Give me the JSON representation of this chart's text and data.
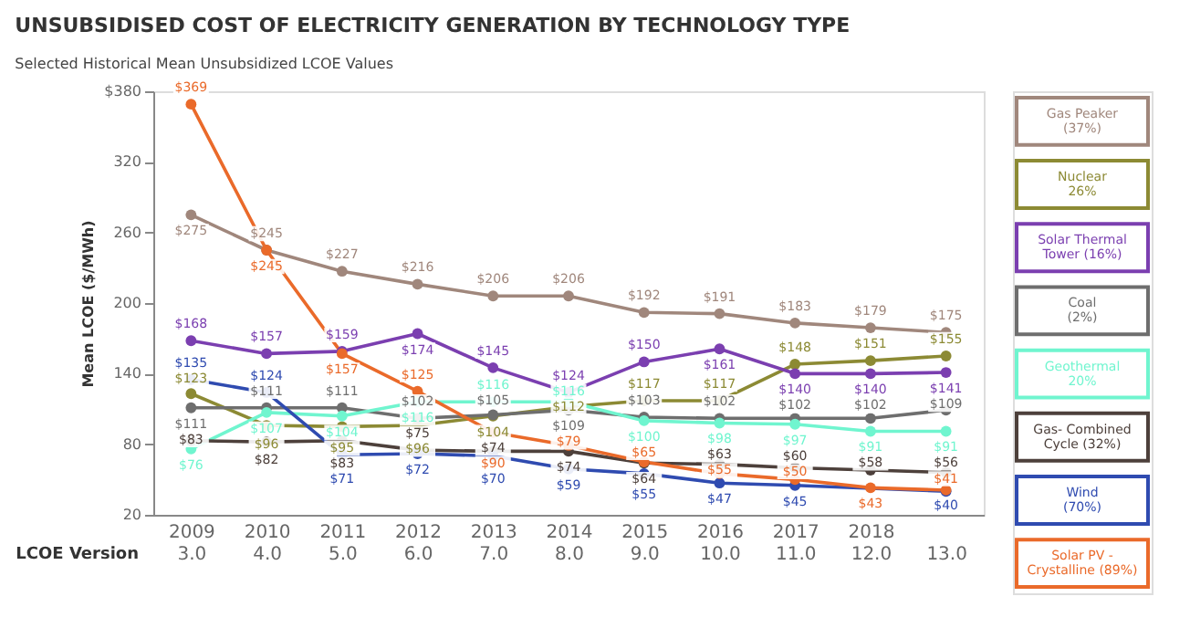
{
  "chart_data": {
    "type": "line",
    "title": "UNSUBSIDISED COST OF ELECTRICITY GENERATION BY TECHNOLOGY TYPE",
    "subtitle": "Selected Historical Mean Unsubsidized LCOE Values",
    "ylabel": "Mean LCOE ($/MWh)",
    "annotations": [
      "LCOE Version"
    ],
    "categories": [
      "2009\n3.0",
      "2010\n4.0",
      "2011\n5.0",
      "2012\n6.0",
      "2013\n7.0",
      "2014\n8.0",
      "2015\n9.0",
      "2016\n10.0",
      "2017\n11.0",
      "2018\n12.0",
      "\n13.0"
    ],
    "ylim": [
      20,
      380
    ],
    "yticks": [
      20,
      80,
      140,
      200,
      260,
      320,
      {
        "value": 380,
        "label": "$380"
      }
    ],
    "grid": false,
    "legend": "right",
    "marker": "circle",
    "line_style": "solid",
    "series": [
      {
        "name": "Gas Peaker\n(37%)",
        "color": "#a0877c",
        "values": [
          275,
          245,
          227,
          216,
          206,
          206,
          192,
          191,
          183,
          179,
          175
        ],
        "value_labels": [
          "$275",
          "$245",
          "$227",
          "$216",
          "$206",
          "$206",
          "$192",
          "$191",
          "$183",
          "$179",
          "$175"
        ]
      },
      {
        "name": "Nuclear\n26%",
        "color": "#8c8a34",
        "values": [
          123,
          96,
          95,
          96,
          104,
          112,
          117,
          117,
          148,
          151,
          155
        ],
        "value_labels": [
          "$123",
          "$96",
          "$95",
          "$96",
          "$104",
          "$112",
          "$117",
          "$117",
          "$148",
          "$151",
          "$155"
        ]
      },
      {
        "name": "Solar Thermal\nTower (16%)",
        "color": "#7b3fb0",
        "values": [
          168,
          157,
          159,
          174,
          145,
          124,
          150,
          161,
          140,
          140,
          141
        ],
        "value_labels": [
          "$168",
          "$157",
          "$159",
          "$174",
          "$145",
          "$124",
          "$150",
          "$161",
          "$140",
          "$140",
          "$141"
        ]
      },
      {
        "name": "Coal\n(2%)",
        "color": "#6e6e6e",
        "values": [
          111,
          111,
          111,
          102,
          105,
          109,
          103,
          102,
          102,
          102,
          109
        ],
        "value_labels": [
          "$111",
          "$111",
          "$111",
          "$102",
          "$105",
          "$109",
          "$103",
          "$102",
          "$102",
          "$102",
          "$109"
        ]
      },
      {
        "name": "Geothermal\n20%",
        "color": "#70f5cf",
        "values": [
          76,
          107,
          104,
          116,
          116,
          116,
          100,
          98,
          97,
          91,
          91
        ],
        "value_labels": [
          "$76",
          "$107",
          "$104",
          "$116",
          "$116",
          "$116",
          "$100",
          "$98",
          "$97",
          "$91",
          "$91"
        ]
      },
      {
        "name": "Gas- Combined\nCycle (32%)",
        "color": "#4d403b",
        "values": [
          83,
          82,
          83,
          75,
          74,
          74,
          64,
          63,
          60,
          58,
          56
        ],
        "value_labels": [
          "$83",
          "$82",
          "$83",
          "$75",
          "$74",
          "$74",
          "$64",
          "$63",
          "$60",
          "$58",
          "$56"
        ]
      },
      {
        "name": "Wind\n(70%)",
        "color": "#2f4bb0",
        "values": [
          135,
          124,
          71,
          72,
          70,
          59,
          55,
          47,
          45,
          null,
          40
        ],
        "value_labels": [
          "$135",
          "$124",
          "$71",
          "$72",
          "$70",
          "$59",
          "$55",
          "$47",
          "$45",
          null,
          "$40"
        ]
      },
      {
        "name": "Solar PV -\nCrystalline (89%)",
        "color": "#ea6a2a",
        "values": [
          369,
          245,
          157,
          125,
          90,
          79,
          65,
          55,
          50,
          43,
          41
        ],
        "value_labels": [
          "$369",
          "$245",
          "$157",
          "$125",
          "$90",
          "$79",
          "$65",
          "$55",
          "$50",
          "$43",
          "$41"
        ]
      }
    ]
  }
}
